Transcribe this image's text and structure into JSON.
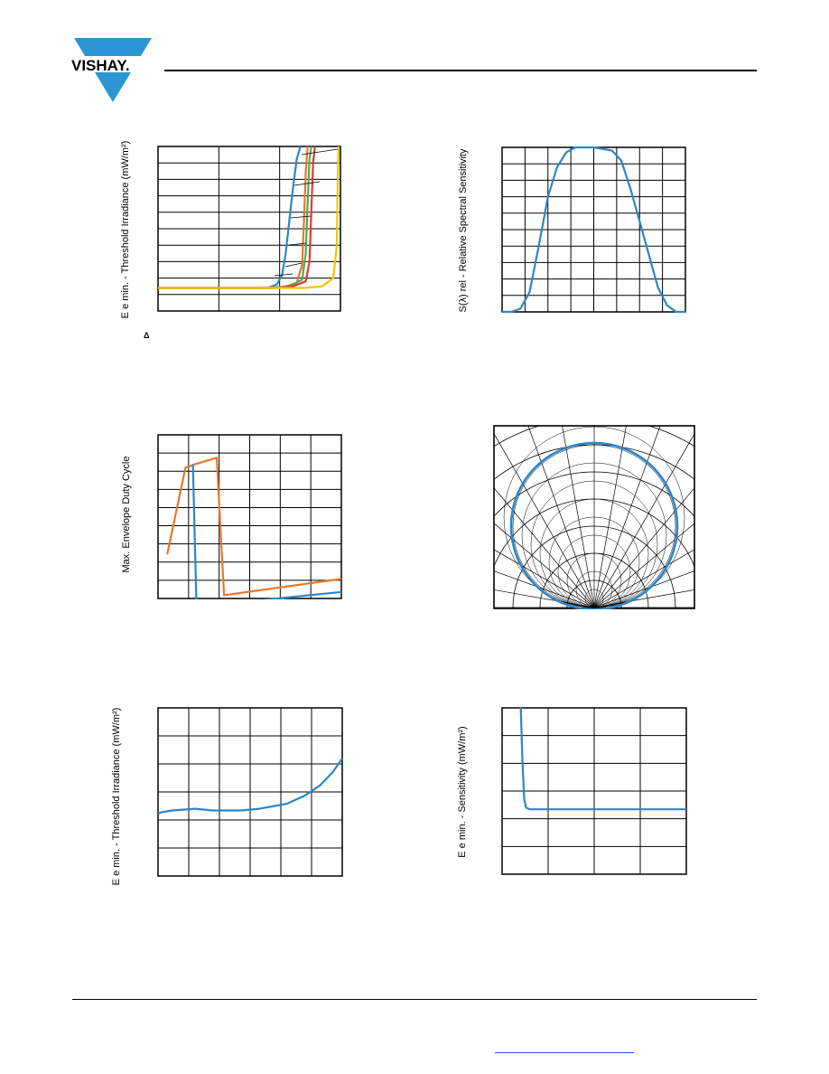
{
  "header": {
    "logo_text": "VISHAY.",
    "colors": {
      "logo_blue": "#2b96d3",
      "rule": "#000000"
    }
  },
  "colors": {
    "blue": "#2b86c9",
    "orange": "#e8772e",
    "green": "#4caf50",
    "red": "#e53935",
    "yellow": "#f5c400",
    "grid": "#000000"
  },
  "chart1": {
    "ylabel": "E e min. - Threshold Irradiance (mW/m²)",
    "note": "Δ"
  },
  "chart2": {
    "ylabel": "S(λ) rel - Relative Spectral Sensitivity"
  },
  "chart3": {
    "ylabel": "Max. Envelope Duty Cycle"
  },
  "chart5": {
    "ylabel": "E e min. - Threshold Irradiance (mW/m²)"
  },
  "chart6": {
    "ylabel": "E e min. - Sensitivity (mW/m²)"
  },
  "chart_data": [
    {
      "type": "line",
      "id": "threshold-irradiance-vs-frequency",
      "grid": true,
      "x_divisions": 3,
      "y_divisions": 10,
      "series": [
        {
          "color": "blue",
          "points": [
            [
              0,
              0.14
            ],
            [
              0.6,
              0.14
            ],
            [
              0.65,
              0.16
            ],
            [
              0.68,
              0.22
            ],
            [
              0.7,
              0.35
            ],
            [
              0.72,
              0.55
            ],
            [
              0.74,
              0.75
            ],
            [
              0.76,
              0.92
            ],
            [
              0.78,
              1.0
            ]
          ]
        },
        {
          "color": "orange",
          "points": [
            [
              0,
              0.14
            ],
            [
              0.62,
              0.14
            ],
            [
              0.7,
              0.15
            ],
            [
              0.76,
              0.17
            ],
            [
              0.79,
              0.28
            ],
            [
              0.8,
              0.55
            ],
            [
              0.81,
              0.85
            ],
            [
              0.82,
              1.0
            ]
          ]
        },
        {
          "color": "green",
          "points": [
            [
              0,
              0.14
            ],
            [
              0.64,
              0.14
            ],
            [
              0.72,
              0.15
            ],
            [
              0.79,
              0.19
            ],
            [
              0.81,
              0.35
            ],
            [
              0.82,
              0.65
            ],
            [
              0.83,
              0.92
            ],
            [
              0.84,
              1.0
            ]
          ]
        },
        {
          "color": "red",
          "points": [
            [
              0,
              0.14
            ],
            [
              0.66,
              0.14
            ],
            [
              0.74,
              0.15
            ],
            [
              0.81,
              0.18
            ],
            [
              0.83,
              0.3
            ],
            [
              0.84,
              0.6
            ],
            [
              0.85,
              0.9
            ],
            [
              0.86,
              1.0
            ]
          ]
        },
        {
          "color": "yellow",
          "points": [
            [
              0,
              0.14
            ],
            [
              0.72,
              0.14
            ],
            [
              0.8,
              0.14
            ],
            [
              0.9,
              0.15
            ],
            [
              0.96,
              0.2
            ],
            [
              0.98,
              0.4
            ],
            [
              0.985,
              0.8
            ],
            [
              0.99,
              1.0
            ]
          ]
        }
      ]
    },
    {
      "type": "line",
      "id": "relative-spectral-sensitivity",
      "grid": true,
      "x_divisions": 8,
      "y_divisions": 10,
      "series": [
        {
          "color": "blue",
          "points": [
            [
              0,
              0.0
            ],
            [
              0.05,
              0.0
            ],
            [
              0.1,
              0.02
            ],
            [
              0.15,
              0.12
            ],
            [
              0.2,
              0.4
            ],
            [
              0.25,
              0.7
            ],
            [
              0.3,
              0.88
            ],
            [
              0.35,
              0.97
            ],
            [
              0.4,
              1.0
            ],
            [
              0.5,
              1.0
            ],
            [
              0.6,
              0.98
            ],
            [
              0.65,
              0.92
            ],
            [
              0.7,
              0.75
            ],
            [
              0.75,
              0.55
            ],
            [
              0.8,
              0.35
            ],
            [
              0.85,
              0.15
            ],
            [
              0.9,
              0.04
            ],
            [
              0.95,
              0.0
            ],
            [
              1.0,
              0.0
            ]
          ]
        }
      ]
    },
    {
      "type": "line",
      "id": "max-envelope-duty-cycle",
      "grid": true,
      "x_divisions": 6,
      "y_divisions": 9,
      "series": [
        {
          "color": "orange",
          "points": [
            [
              0.05,
              0.27
            ],
            [
              0.15,
              0.8
            ],
            [
              0.2,
              0.82
            ],
            [
              0.32,
              0.86
            ],
            [
              0.36,
              0.02
            ],
            [
              1.0,
              0.12
            ]
          ]
        },
        {
          "color": "blue",
          "points": [
            [
              0.19,
              0.82
            ],
            [
              0.21,
              -0.05
            ],
            [
              1.0,
              0.04
            ]
          ]
        }
      ]
    },
    {
      "type": "polar",
      "id": "relative-radiant-sensitivity-directivity",
      "grid": true,
      "series": [
        {
          "color": "blue",
          "shape": "circle"
        }
      ]
    },
    {
      "type": "line",
      "id": "threshold-irradiance-vs-temperature",
      "grid": true,
      "x_divisions": 6,
      "y_divisions": 6,
      "series": [
        {
          "color": "blue",
          "points": [
            [
              0,
              0.37
            ],
            [
              0.02,
              0.38
            ],
            [
              0.08,
              0.39
            ],
            [
              0.2,
              0.4
            ],
            [
              0.3,
              0.39
            ],
            [
              0.45,
              0.39
            ],
            [
              0.55,
              0.4
            ],
            [
              0.7,
              0.43
            ],
            [
              0.8,
              0.48
            ],
            [
              0.88,
              0.54
            ],
            [
              0.95,
              0.62
            ],
            [
              1.0,
              0.7
            ]
          ]
        }
      ]
    },
    {
      "type": "line",
      "id": "sensitivity-vs-distance",
      "grid": true,
      "x_divisions": 4,
      "y_divisions": 6,
      "series": [
        {
          "color": "blue",
          "points": [
            [
              0.1,
              1.05
            ],
            [
              0.11,
              0.7
            ],
            [
              0.12,
              0.45
            ],
            [
              0.13,
              0.4
            ],
            [
              0.15,
              0.39
            ],
            [
              0.2,
              0.39
            ],
            [
              1.0,
              0.39
            ]
          ]
        }
      ]
    }
  ]
}
